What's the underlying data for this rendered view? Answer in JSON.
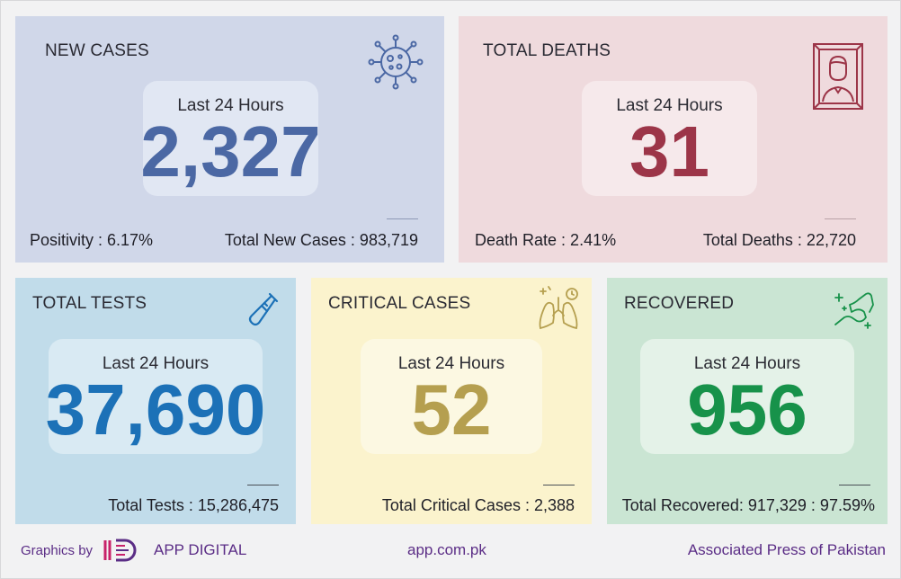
{
  "cards": {
    "new_cases": {
      "title": "NEW CASES",
      "period": "Last 24 Hours",
      "value": "2,327",
      "left_stat": "Positivity : 6.17%",
      "right_stat": "Total New Cases : 983,719",
      "icon": "virus-icon",
      "color": "#4b68a4"
    },
    "total_deaths": {
      "title": "TOTAL DEATHS",
      "period": "Last 24 Hours",
      "value": "31",
      "left_stat": "Death Rate : 2.41%",
      "right_stat": "Total Deaths : 22,720",
      "icon": "portrait-frame-icon",
      "color": "#9c3548"
    },
    "total_tests": {
      "title": "TOTAL TESTS",
      "period": "Last 24 Hours",
      "value": "37,690",
      "stat": "Total Tests : 15,286,475",
      "icon": "test-tube-icon",
      "color": "#1c71b7"
    },
    "critical_cases": {
      "title": "CRITICAL CASES",
      "period": "Last 24 Hours",
      "value": "52",
      "stat": "Total Critical Cases : 2,388",
      "icon": "lungs-icon",
      "color": "#b59f4f"
    },
    "recovered": {
      "title": "RECOVERED",
      "period": "Last 24 Hours",
      "value": "956",
      "stat": "Total Recovered: 917,329 : 97.59%",
      "icon": "flexed-arm-icon",
      "color": "#17924a"
    }
  },
  "footer": {
    "graphics_by": "Graphics by",
    "brand": "APP DIGITAL",
    "website": "app.com.pk",
    "agency": "Associated Press of Pakistan",
    "brand_color": "#5b2d86"
  }
}
